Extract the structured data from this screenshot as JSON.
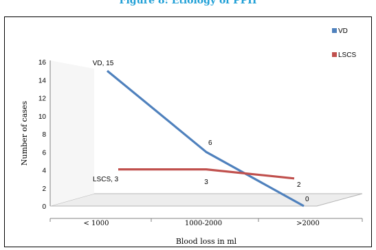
{
  "chart_data": {
    "type": "line",
    "title": "Figure 8: Etiology of PPH",
    "xlabel": "Blood loss in ml",
    "ylabel": "Number of cases",
    "categories": [
      "< 1000",
      "1000-2000",
      ">2000"
    ],
    "ylim": [
      0,
      16
    ],
    "yticks": [
      "0",
      "2",
      "4",
      "6",
      "8",
      "10",
      "12",
      "14",
      "16"
    ],
    "series": [
      {
        "name": "VD",
        "values": [
          15,
          6,
          0
        ],
        "color": "#4f81bd",
        "data_labels": [
          "VD, 15",
          "6",
          "0"
        ]
      },
      {
        "name": "LSCS",
        "values": [
          3,
          3,
          2
        ],
        "color": "#c0504d",
        "data_labels": [
          "LSCS, 3",
          "3",
          "2"
        ]
      }
    ],
    "legend": "right",
    "grid": false
  }
}
